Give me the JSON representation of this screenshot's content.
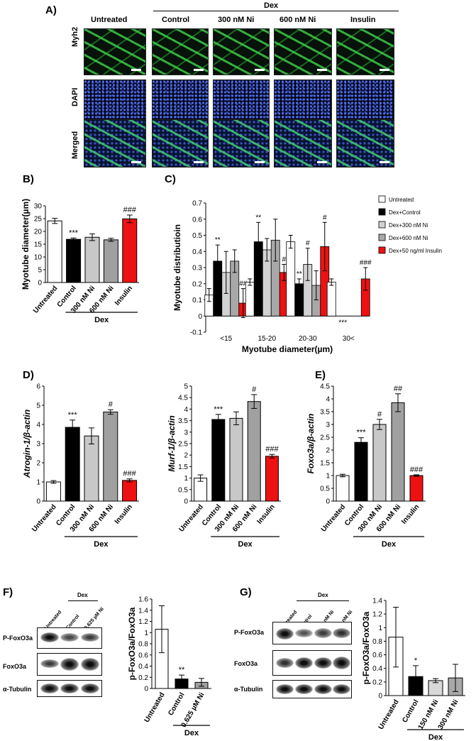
{
  "panel_labels": {
    "A": "A)",
    "B": "B)",
    "C": "C)",
    "D": "D)",
    "E": "E)",
    "F": "F)",
    "G": "G)"
  },
  "panelA": {
    "header_untreated": "Untreated",
    "dex_label": "Dex",
    "conditions": [
      "Control",
      "300 nM Ni",
      "600 nM Ni",
      "Insulin"
    ],
    "row_labels": [
      "Myh2",
      "DAPI",
      "Merged"
    ]
  },
  "dex_label": "Dex",
  "chart_data": [
    {
      "id": "B",
      "type": "bar",
      "ylabel": "Myotube diameter(µm)",
      "ylim": [
        0,
        30
      ],
      "yticks": [
        0,
        5,
        10,
        15,
        20,
        25,
        30
      ],
      "categories": [
        "Untreated",
        "Control",
        "300 nM Ni",
        "600 nM Ni",
        "Insulin"
      ],
      "values": [
        24.1,
        16.9,
        17.7,
        16.7,
        24.9
      ],
      "errors": [
        1.0,
        0.5,
        1.3,
        0.6,
        1.5
      ],
      "colors": [
        "#ffffff",
        "#000000",
        "#c8c8c8",
        "#a0a0a0",
        "#ee1111"
      ],
      "annotations": [
        "",
        "***",
        "",
        "",
        "###"
      ],
      "group_label": "Dex"
    },
    {
      "id": "C",
      "type": "bar",
      "ylabel": "Myotube distributioin",
      "xlabel": "Myotube diameter(µm)",
      "ylim": [
        -0.1,
        0.7
      ],
      "yticks": [
        -0.1,
        0,
        0.1,
        0.2,
        0.3,
        0.4,
        0.5,
        0.6,
        0.7
      ],
      "categories": [
        "<15",
        "15-20",
        "20-30",
        "30<"
      ],
      "series": [
        {
          "name": "Untreated",
          "color": "#ffffff",
          "values": [
            0.13,
            0.21,
            0.46,
            0.21
          ],
          "errors": [
            0.04,
            0.02,
            0.04,
            0.02
          ],
          "annotations": [
            "",
            "",
            "",
            ""
          ]
        },
        {
          "name": "Dex+Control",
          "color": "#000000",
          "values": [
            0.34,
            0.46,
            0.2,
            0.0
          ],
          "errors": [
            0.1,
            0.12,
            0.03,
            0
          ],
          "annotations": [
            "**",
            "**",
            "**",
            "***"
          ]
        },
        {
          "name": "Dex+300 nM Ni",
          "color": "#d2d2d2",
          "values": [
            0.27,
            0.41,
            0.32,
            0.0
          ],
          "errors": [
            0.13,
            0.07,
            0.1,
            0
          ],
          "annotations": [
            "",
            "",
            "#",
            ""
          ]
        },
        {
          "name": "Dex+600 nM Ni",
          "color": "#a8a8a8",
          "values": [
            0.34,
            0.47,
            0.19,
            0.0
          ],
          "errors": [
            0.07,
            0.13,
            0.09,
            0
          ],
          "annotations": [
            "",
            "",
            "",
            ""
          ]
        },
        {
          "name": "Dex+50 ng/ml Insulin",
          "color": "#ee1111",
          "values": [
            0.08,
            0.27,
            0.43,
            0.23
          ],
          "errors": [
            0.09,
            0.05,
            0.15,
            0.07
          ],
          "annotations": [
            "##",
            "#",
            "#",
            "###"
          ]
        }
      ]
    },
    {
      "id": "D1",
      "type": "bar",
      "ylabel": "Atrogin-1/β-actin",
      "ylim": [
        0,
        6
      ],
      "yticks": [
        0,
        1,
        2,
        3,
        4,
        5,
        6
      ],
      "categories": [
        "Untreated",
        "Control",
        "300 nM Ni",
        "600 nM Ni",
        "Insulin"
      ],
      "values": [
        1.0,
        3.85,
        3.4,
        4.65,
        1.08
      ],
      "errors": [
        0.07,
        0.38,
        0.42,
        0.12,
        0.08
      ],
      "colors": [
        "#ffffff",
        "#000000",
        "#c8c8c8",
        "#a0a0a0",
        "#ee1111"
      ],
      "annotations": [
        "",
        "***",
        "",
        "#",
        "###"
      ],
      "group_label": "Dex"
    },
    {
      "id": "D2",
      "type": "bar",
      "ylabel": "Murf-1/β-actin",
      "ylim": [
        0,
        5
      ],
      "yticks": [
        0,
        0.5,
        1,
        1.5,
        2,
        2.5,
        3,
        3.5,
        4,
        4.5,
        5
      ],
      "categories": [
        "Untreated",
        "Control",
        "300 nM Ni",
        "600 nM Ni",
        "Insulin"
      ],
      "values": [
        1.0,
        3.55,
        3.6,
        4.33,
        1.95
      ],
      "errors": [
        0.14,
        0.22,
        0.28,
        0.3,
        0.08
      ],
      "colors": [
        "#ffffff",
        "#000000",
        "#c8c8c8",
        "#a0a0a0",
        "#ee1111"
      ],
      "annotations": [
        "",
        "***",
        "",
        "#",
        "###"
      ],
      "group_label": "Dex"
    },
    {
      "id": "E",
      "type": "bar",
      "ylabel": "Foxo3a/β-actin",
      "ylim": [
        0,
        4.5
      ],
      "yticks": [
        0,
        0.5,
        1,
        1.5,
        2,
        2.5,
        3,
        3.5,
        4,
        4.5
      ],
      "categories": [
        "Untreated",
        "Control",
        "300 nM Ni",
        "600 nM Ni",
        "Insulin"
      ],
      "values": [
        1.0,
        2.3,
        3.0,
        3.85,
        1.0
      ],
      "errors": [
        0.05,
        0.18,
        0.2,
        0.35,
        0.03
      ],
      "colors": [
        "#ffffff",
        "#000000",
        "#c8c8c8",
        "#a0a0a0",
        "#ee1111"
      ],
      "annotations": [
        "",
        "***",
        "#",
        "##",
        "###"
      ],
      "group_label": "Dex"
    },
    {
      "id": "F",
      "type": "bar",
      "ylabel": "p-FoxO3a/FoxO3a",
      "ylim": [
        0,
        1.6
      ],
      "yticks": [
        0,
        0.2,
        0.4,
        0.6,
        0.8,
        1,
        1.2,
        1.4,
        1.6
      ],
      "categories": [
        "Untreated",
        "Control",
        "0.625 µM Ni"
      ],
      "values": [
        1.06,
        0.17,
        0.11
      ],
      "errors": [
        0.42,
        0.07,
        0.07
      ],
      "colors": [
        "#ffffff",
        "#000000",
        "#a0a0a0"
      ],
      "annotations": [
        "",
        "**",
        ""
      ],
      "group_label": "Dex"
    },
    {
      "id": "G",
      "type": "bar",
      "ylabel": "p-FoxO3a/FoxO3a",
      "ylim": [
        0,
        1.4
      ],
      "yticks": [
        0,
        0.2,
        0.4,
        0.6,
        0.8,
        1,
        1.2,
        1.4
      ],
      "categories": [
        "Untreated",
        "Control",
        "150 nM Ni",
        "300 nM Ni"
      ],
      "values": [
        0.86,
        0.28,
        0.22,
        0.26
      ],
      "errors": [
        0.44,
        0.16,
        0.03,
        0.2
      ],
      "colors": [
        "#ffffff",
        "#000000",
        "#d8d8d8",
        "#a8a8a8"
      ],
      "annotations": [
        "",
        "*",
        "",
        ""
      ],
      "group_label": "Dex"
    }
  ],
  "blotF": {
    "lanes": [
      "Untreated",
      "Control",
      "0.625 µM Ni"
    ],
    "dex_label": "Dex",
    "rows": [
      "P-FoxO3a",
      "FoxO3a",
      "α-Tubulin"
    ]
  },
  "blotG": {
    "lanes": [
      "Untreated",
      "Control",
      "150 nM Ni",
      "300 nM Ni"
    ],
    "dex_label": "Dex",
    "rows": [
      "P-FoxO3a",
      "FoxO3a",
      "α-Tubulin"
    ]
  }
}
